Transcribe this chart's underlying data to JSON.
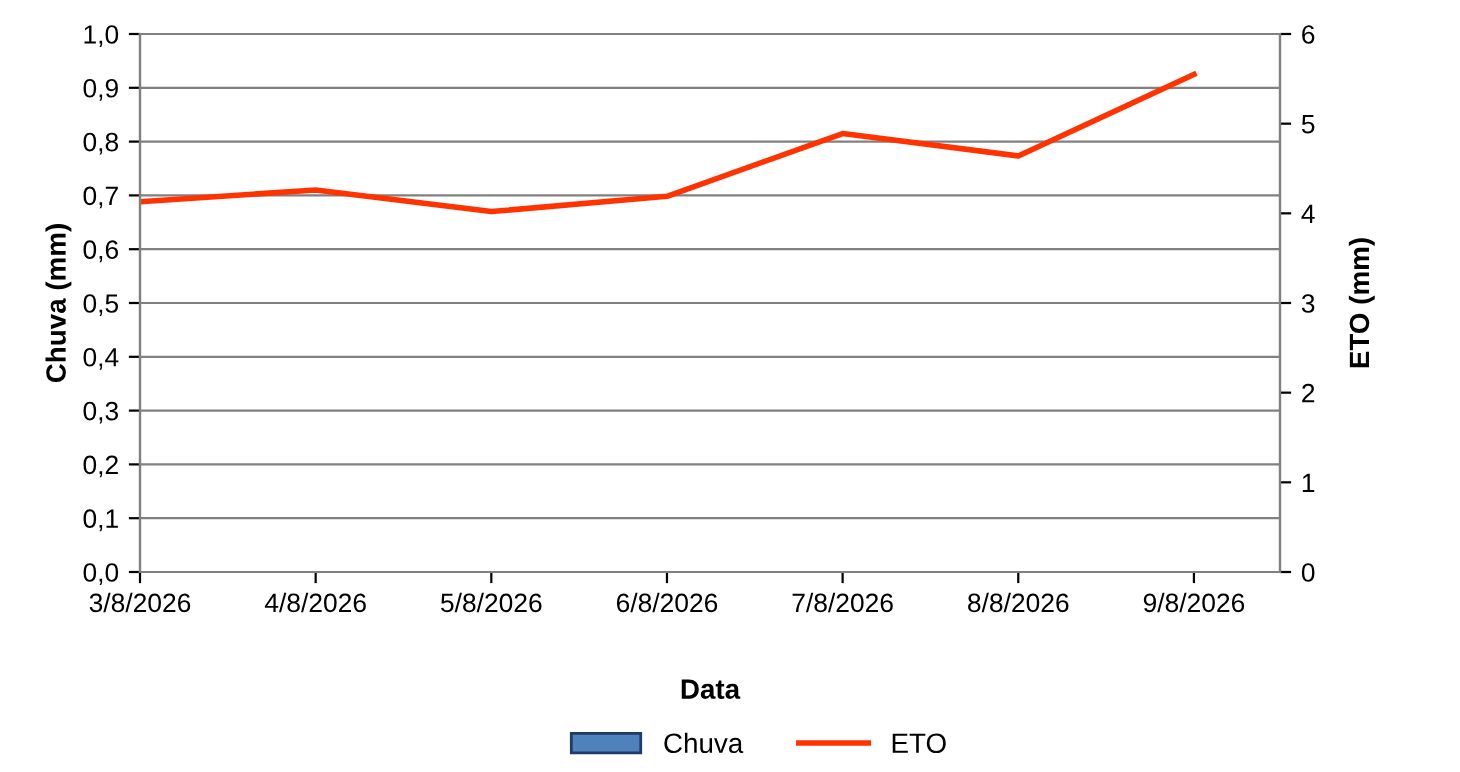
{
  "chart_data": {
    "type": "bar",
    "xlabel": "Data",
    "ylabel": "Chuva (mm)",
    "y2label": "ETO (mm)",
    "categories": [
      "3/8/2026",
      "4/8/2026",
      "5/8/2026",
      "6/8/2026",
      "7/8/2026",
      "8/8/2026",
      "9/8/2026"
    ],
    "series": [
      {
        "name": "Chuva",
        "color": "#4f81bd",
        "values": [
          0,
          0,
          0,
          0,
          0,
          0,
          0
        ]
      },
      {
        "name": "ETO",
        "type": "line",
        "axis": "y2",
        "color": "#ff3300",
        "values": [
          4.13,
          4.26,
          4.02,
          4.19,
          4.89,
          4.64,
          5.55
        ]
      }
    ],
    "ylim": [
      0,
      1
    ],
    "yticks": [
      {
        "value": 0,
        "label": "0,0"
      },
      {
        "value": 0.1,
        "label": "0,1"
      },
      {
        "value": 0.2,
        "label": "0,2"
      },
      {
        "value": 0.3,
        "label": "0,3"
      },
      {
        "value": 0.4,
        "label": "0,4"
      },
      {
        "value": 0.5,
        "label": "0,5"
      },
      {
        "value": 0.6,
        "label": "0,6"
      },
      {
        "value": 0.7,
        "label": "0,7"
      },
      {
        "value": 0.8,
        "label": "0,8"
      },
      {
        "value": 0.9,
        "label": "0,9"
      },
      {
        "value": 1,
        "label": "1,0"
      }
    ],
    "y2lim": [
      0,
      6
    ],
    "y2ticks": [
      0,
      1,
      2,
      3,
      4,
      5,
      6
    ],
    "grid": "y",
    "legend": "bottom",
    "marker": "none",
    "line_style": "solid"
  }
}
